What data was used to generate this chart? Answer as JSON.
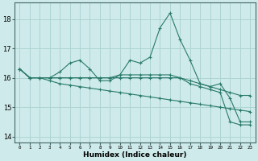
{
  "x": [
    0,
    1,
    2,
    3,
    4,
    5,
    6,
    7,
    8,
    9,
    10,
    11,
    12,
    13,
    14,
    15,
    16,
    17,
    18,
    19,
    20,
    21,
    22,
    23
  ],
  "line1": [
    16.3,
    16.0,
    16.0,
    16.0,
    16.2,
    16.5,
    16.6,
    16.3,
    15.9,
    15.9,
    16.1,
    16.6,
    16.5,
    16.7,
    17.7,
    18.2,
    17.3,
    16.6,
    15.8,
    15.7,
    15.8,
    15.3,
    14.5,
    14.5
  ],
  "line2": [
    16.3,
    16.0,
    16.0,
    16.0,
    16.0,
    16.0,
    16.0,
    16.0,
    16.0,
    16.0,
    16.1,
    16.1,
    16.1,
    16.1,
    16.1,
    16.1,
    16.0,
    15.9,
    15.8,
    15.7,
    15.6,
    15.5,
    15.4,
    15.4
  ],
  "line3": [
    16.3,
    16.0,
    16.0,
    15.9,
    15.8,
    15.75,
    15.7,
    15.65,
    15.6,
    15.55,
    15.5,
    15.45,
    15.4,
    15.35,
    15.3,
    15.25,
    15.2,
    15.15,
    15.1,
    15.05,
    15.0,
    14.95,
    14.9,
    14.85
  ],
  "line4": [
    16.3,
    16.0,
    16.0,
    16.0,
    16.0,
    16.0,
    16.0,
    16.0,
    16.0,
    16.0,
    16.0,
    16.0,
    16.0,
    16.0,
    16.0,
    16.0,
    16.0,
    15.8,
    15.7,
    15.6,
    15.5,
    14.5,
    14.4,
    14.4
  ],
  "line_color": "#2a7a6a",
  "bg_color": "#ceeaea",
  "grid_color": "#aed4d4",
  "xlabel": "Humidex (Indice chaleur)",
  "ylim": [
    13.8,
    18.55
  ],
  "xlim": [
    -0.5,
    23.5
  ],
  "yticks": [
    14,
    15,
    16,
    17,
    18
  ],
  "xticks": [
    0,
    1,
    2,
    3,
    4,
    5,
    6,
    7,
    8,
    9,
    10,
    11,
    12,
    13,
    14,
    15,
    16,
    17,
    18,
    19,
    20,
    21,
    22,
    23
  ]
}
